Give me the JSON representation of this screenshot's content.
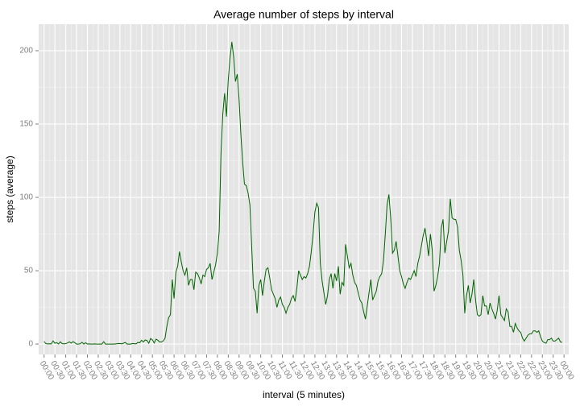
{
  "chart_data": {
    "type": "line",
    "title": "Average number of steps by interval",
    "xlabel": "interval (5 minutes)",
    "ylabel": "steps (average)",
    "color": "#006400",
    "grid": true,
    "minor_grid": true,
    "xlim": [
      -15,
      1453
    ],
    "ylim": [
      -7.1,
      218.1
    ],
    "yticks": [
      0,
      50,
      100,
      150,
      200
    ],
    "xticks": [
      {
        "value": 0,
        "label": "00:00"
      },
      {
        "value": 30,
        "label": "00:30"
      },
      {
        "value": 60,
        "label": "01:00"
      },
      {
        "value": 90,
        "label": "01:30"
      },
      {
        "value": 120,
        "label": "02:00"
      },
      {
        "value": 150,
        "label": "02:30"
      },
      {
        "value": 180,
        "label": "03:00"
      },
      {
        "value": 210,
        "label": "03:30"
      },
      {
        "value": 240,
        "label": "04:00"
      },
      {
        "value": 270,
        "label": "04:30"
      },
      {
        "value": 300,
        "label": "05:00"
      },
      {
        "value": 330,
        "label": "05:30"
      },
      {
        "value": 360,
        "label": "06:00"
      },
      {
        "value": 390,
        "label": "06:30"
      },
      {
        "value": 420,
        "label": "07:00"
      },
      {
        "value": 450,
        "label": "07:30"
      },
      {
        "value": 480,
        "label": "08:00"
      },
      {
        "value": 510,
        "label": "08:30"
      },
      {
        "value": 540,
        "label": "09:00"
      },
      {
        "value": 570,
        "label": "09:30"
      },
      {
        "value": 600,
        "label": "10:00"
      },
      {
        "value": 630,
        "label": "10:30"
      },
      {
        "value": 660,
        "label": "11:00"
      },
      {
        "value": 690,
        "label": "11:30"
      },
      {
        "value": 720,
        "label": "12:00"
      },
      {
        "value": 750,
        "label": "12:30"
      },
      {
        "value": 780,
        "label": "13:00"
      },
      {
        "value": 810,
        "label": "13:30"
      },
      {
        "value": 840,
        "label": "14:00"
      },
      {
        "value": 870,
        "label": "14:30"
      },
      {
        "value": 900,
        "label": "15:00"
      },
      {
        "value": 930,
        "label": "15:30"
      },
      {
        "value": 960,
        "label": "16:00"
      },
      {
        "value": 990,
        "label": "16:30"
      },
      {
        "value": 1020,
        "label": "17:00"
      },
      {
        "value": 1050,
        "label": "17:30"
      },
      {
        "value": 1080,
        "label": "18:00"
      },
      {
        "value": 1110,
        "label": "18:30"
      },
      {
        "value": 1140,
        "label": "19:00"
      },
      {
        "value": 1170,
        "label": "19:30"
      },
      {
        "value": 1200,
        "label": "20:00"
      },
      {
        "value": 1230,
        "label": "20:30"
      },
      {
        "value": 1260,
        "label": "21:00"
      },
      {
        "value": 1290,
        "label": "21:30"
      },
      {
        "value": 1320,
        "label": "22:00"
      },
      {
        "value": 1350,
        "label": "22:30"
      },
      {
        "value": 1380,
        "label": "23:00"
      },
      {
        "value": 1410,
        "label": "23:30"
      },
      {
        "value": 1440,
        "label": "00:00"
      }
    ],
    "x": [
      0,
      5,
      10,
      15,
      20,
      25,
      30,
      35,
      40,
      45,
      50,
      55,
      60,
      65,
      70,
      75,
      80,
      85,
      90,
      95,
      100,
      105,
      110,
      115,
      120,
      125,
      130,
      135,
      140,
      145,
      150,
      155,
      160,
      165,
      170,
      175,
      180,
      185,
      190,
      195,
      200,
      205,
      210,
      215,
      220,
      225,
      230,
      235,
      240,
      245,
      250,
      255,
      260,
      265,
      270,
      275,
      280,
      285,
      290,
      295,
      300,
      305,
      310,
      315,
      320,
      325,
      330,
      335,
      340,
      345,
      350,
      355,
      360,
      365,
      370,
      375,
      380,
      385,
      390,
      395,
      400,
      405,
      410,
      415,
      420,
      425,
      430,
      435,
      440,
      445,
      450,
      455,
      460,
      465,
      470,
      475,
      480,
      485,
      490,
      495,
      500,
      505,
      510,
      515,
      520,
      525,
      530,
      535,
      540,
      545,
      550,
      555,
      560,
      565,
      570,
      575,
      580,
      585,
      590,
      595,
      600,
      605,
      610,
      615,
      620,
      625,
      630,
      635,
      640,
      645,
      650,
      655,
      660,
      665,
      670,
      675,
      680,
      685,
      690,
      695,
      700,
      705,
      710,
      715,
      720,
      725,
      730,
      735,
      740,
      745,
      750,
      755,
      760,
      765,
      770,
      775,
      780,
      785,
      790,
      795,
      800,
      805,
      810,
      815,
      820,
      825,
      830,
      835,
      840,
      845,
      850,
      855,
      860,
      865,
      870,
      875,
      880,
      885,
      890,
      895,
      900,
      905,
      910,
      915,
      920,
      925,
      930,
      935,
      940,
      945,
      950,
      955,
      960,
      965,
      970,
      975,
      980,
      985,
      990,
      995,
      1000,
      1005,
      1010,
      1015,
      1020,
      1025,
      1030,
      1035,
      1040,
      1045,
      1050,
      1055,
      1060,
      1065,
      1070,
      1075,
      1080,
      1085,
      1090,
      1095,
      1100,
      1105,
      1110,
      1115,
      1120,
      1125,
      1130,
      1135,
      1140,
      1145,
      1150,
      1155,
      1160,
      1165,
      1170,
      1175,
      1180,
      1185,
      1190,
      1195,
      1200,
      1205,
      1210,
      1215,
      1220,
      1225,
      1230,
      1235,
      1240,
      1245,
      1250,
      1255,
      1260,
      1265,
      1270,
      1275,
      1280,
      1285,
      1290,
      1295,
      1300,
      1305,
      1310,
      1315,
      1320,
      1325,
      1330,
      1335,
      1340,
      1345,
      1350,
      1355,
      1360,
      1365,
      1370,
      1375,
      1380,
      1385,
      1390,
      1395,
      1400,
      1405,
      1410,
      1415,
      1420,
      1425,
      1430,
      1435
    ],
    "values": [
      1.7,
      0.3,
      0.1,
      0.2,
      0.1,
      2.1,
      0.5,
      0.9,
      0,
      1.5,
      0.3,
      0.1,
      0.3,
      0.7,
      1.5,
      0.6,
      1.6,
      0.9,
      0,
      0,
      0.2,
      1.2,
      0,
      0.9,
      0,
      0.1,
      0,
      0,
      0.1,
      0,
      0,
      0,
      0,
      1.6,
      0,
      0,
      0,
      0,
      0,
      0,
      0.2,
      0.3,
      0.4,
      0.1,
      0.6,
      1.1,
      0,
      0,
      0,
      0.4,
      0.2,
      0.2,
      1.1,
      0.9,
      2.6,
      1.4,
      2.8,
      2.4,
      0.5,
      3.8,
      2.9,
      0.7,
      3.3,
      2.6,
      1.4,
      1.4,
      2.1,
      4,
      12,
      18,
      20,
      44,
      31,
      49,
      53,
      63,
      56,
      50,
      47,
      52,
      40,
      44,
      44,
      37,
      49,
      48,
      45,
      41,
      47,
      46,
      51,
      52,
      55,
      44,
      49,
      54,
      62,
      77,
      130,
      157,
      171,
      155,
      180,
      195,
      206,
      196,
      179,
      184,
      167,
      143,
      124,
      109,
      108,
      103,
      95,
      66,
      38,
      36,
      21,
      40,
      44,
      33,
      43,
      51,
      52,
      45,
      37,
      34,
      31,
      25,
      30,
      32,
      27,
      25,
      21,
      25,
      27,
      31,
      33,
      29,
      38,
      50,
      47,
      44,
      46,
      45,
      48,
      53,
      63,
      75,
      90,
      96,
      93,
      55,
      43,
      35,
      27,
      33,
      44,
      48,
      38,
      48,
      43,
      53,
      34,
      42,
      40,
      68,
      60,
      52,
      55,
      47,
      42,
      40,
      35,
      30,
      28,
      22,
      17,
      26,
      35,
      44,
      30,
      33,
      36,
      43,
      46,
      48,
      57,
      75,
      95,
      102,
      86,
      62,
      64,
      70,
      60,
      50,
      46,
      41,
      38,
      42,
      45,
      44,
      47,
      50,
      46,
      55,
      60,
      67,
      74,
      79,
      70,
      60,
      75,
      64,
      36,
      40,
      46,
      55,
      79,
      85,
      62,
      70,
      77,
      99,
      86,
      85,
      85,
      80,
      64,
      57,
      47,
      21,
      33,
      40,
      28,
      34,
      44,
      30,
      20,
      19,
      20,
      33,
      26,
      26,
      20,
      28,
      24,
      21,
      17,
      23,
      33,
      20,
      18,
      16,
      24,
      22,
      12,
      12,
      8,
      14,
      11,
      9,
      8,
      4,
      2,
      4,
      6,
      7,
      7,
      9,
      9,
      8,
      9,
      5,
      2,
      1,
      0.5,
      3,
      3,
      4,
      2,
      2,
      3,
      4,
      1.5,
      1.1
    ]
  }
}
